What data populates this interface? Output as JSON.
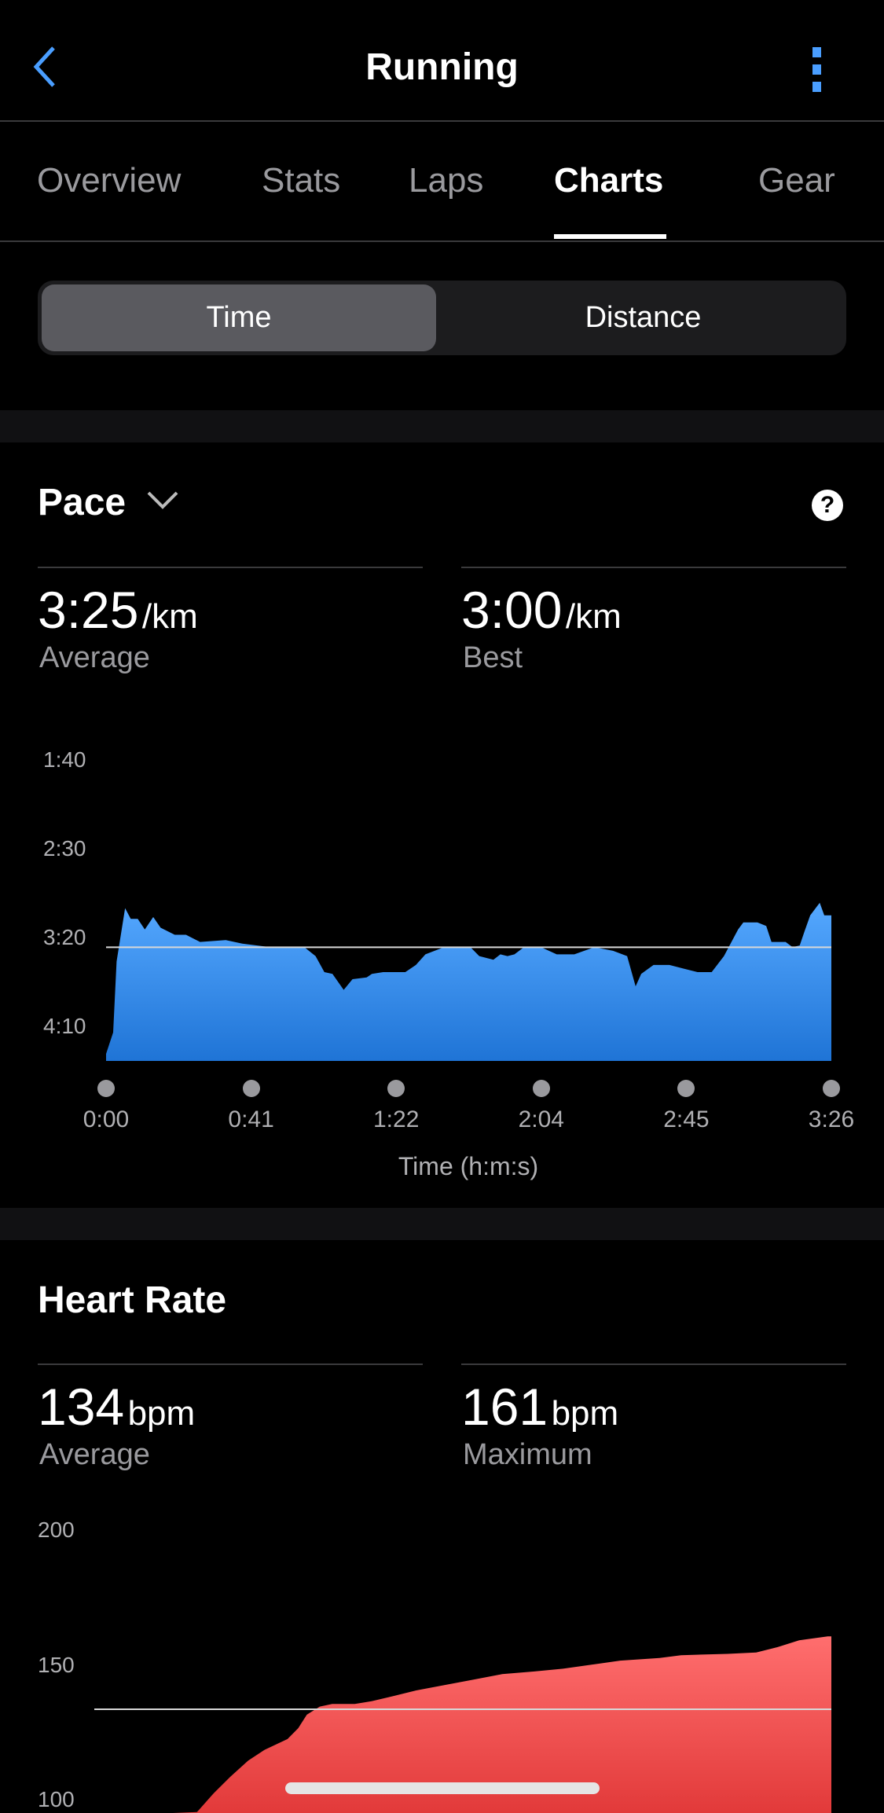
{
  "header": {
    "title": "Running",
    "back_icon": "chevron-left-icon",
    "menu_icon": "kebab-menu-icon",
    "accent": "#4a9eff"
  },
  "tabs": [
    {
      "label": "Overview"
    },
    {
      "label": "Stats"
    },
    {
      "label": "Laps"
    },
    {
      "label": "Charts",
      "active": true
    },
    {
      "label": "Gear"
    }
  ],
  "segment": {
    "options": [
      "Time",
      "Distance"
    ],
    "selected": "Time"
  },
  "pace": {
    "title": "Pace",
    "help_icon": "question-circle-icon",
    "average": {
      "value": "3:25",
      "unit": "/km",
      "label": "Average"
    },
    "best": {
      "value": "3:00",
      "unit": "/km",
      "label": "Best"
    }
  },
  "heart_rate": {
    "title": "Heart Rate",
    "average": {
      "value": "134",
      "unit": "bpm",
      "label": "Average"
    },
    "maximum": {
      "value": "161",
      "unit": "bpm",
      "label": "Maximum"
    }
  },
  "chart_data": [
    {
      "type": "area",
      "name": "pace",
      "xlabel": "Time (h:m:s)",
      "x_ticks": [
        "0:00",
        "0:41",
        "1:22",
        "2:04",
        "2:45",
        "3:26"
      ],
      "y_ticks": [
        "1:40",
        "2:30",
        "3:20",
        "4:10"
      ],
      "y_inverted": true,
      "ylim_seconds": [
        100,
        269
      ],
      "xlim_seconds": [
        0,
        206
      ],
      "average_line_seconds": 205,
      "color": "#3d95f0",
      "points": [
        [
          0,
          265
        ],
        [
          2,
          253
        ],
        [
          3,
          213
        ],
        [
          5.4,
          183
        ],
        [
          7,
          189
        ],
        [
          9,
          189
        ],
        [
          11,
          195
        ],
        [
          13.4,
          188
        ],
        [
          15.5,
          194
        ],
        [
          19.5,
          198
        ],
        [
          22.7,
          198
        ],
        [
          26.7,
          202
        ],
        [
          34,
          201
        ],
        [
          38.7,
          203
        ],
        [
          46.7,
          205
        ],
        [
          56.3,
          205
        ],
        [
          59.5,
          210
        ],
        [
          62,
          219
        ],
        [
          64.3,
          220
        ],
        [
          67.5,
          229
        ],
        [
          70,
          223
        ],
        [
          74,
          222
        ],
        [
          75.5,
          220
        ],
        [
          78.7,
          219
        ],
        [
          85,
          219
        ],
        [
          88,
          215
        ],
        [
          90.7,
          209
        ],
        [
          96,
          205
        ],
        [
          103.5,
          205
        ],
        [
          106,
          210
        ],
        [
          110,
          212
        ],
        [
          112,
          209
        ],
        [
          114,
          210
        ],
        [
          116,
          209
        ],
        [
          118.7,
          205
        ],
        [
          123.5,
          205
        ],
        [
          128,
          209
        ],
        [
          133,
          209
        ],
        [
          138.7,
          205
        ],
        [
          144,
          207
        ],
        [
          148,
          210
        ],
        [
          150.4,
          227
        ],
        [
          152,
          220
        ],
        [
          155.5,
          215
        ],
        [
          160,
          215
        ],
        [
          164,
          217
        ],
        [
          168,
          219
        ],
        [
          172,
          219
        ],
        [
          175.5,
          210
        ],
        [
          179.5,
          195
        ],
        [
          181,
          191
        ],
        [
          185,
          191
        ],
        [
          187.5,
          193
        ],
        [
          189,
          202
        ],
        [
          193,
          202
        ],
        [
          195,
          205
        ],
        [
          197,
          204
        ],
        [
          198.4,
          196
        ],
        [
          200,
          187
        ],
        [
          202.7,
          180
        ],
        [
          204,
          187
        ],
        [
          206,
          187
        ]
      ]
    },
    {
      "type": "area",
      "name": "heart-rate",
      "y_ticks": [
        "200",
        "150",
        "100"
      ],
      "ylim": [
        50,
        200
      ],
      "xlim_seconds": [
        0,
        206
      ],
      "average_line": 134,
      "color": "#f05050",
      "points": [
        [
          22,
          80
        ],
        [
          28.7,
          96
        ],
        [
          33.4,
          103
        ],
        [
          38,
          109
        ],
        [
          43,
          115
        ],
        [
          47.6,
          119
        ],
        [
          54,
          123
        ],
        [
          57,
          127
        ],
        [
          59.4,
          132
        ],
        [
          63,
          135
        ],
        [
          66.5,
          136
        ],
        [
          72.8,
          136
        ],
        [
          77.5,
          137
        ],
        [
          84,
          139
        ],
        [
          90,
          141
        ],
        [
          98,
          143
        ],
        [
          106,
          145
        ],
        [
          114,
          147
        ],
        [
          123,
          148
        ],
        [
          131,
          149
        ],
        [
          139,
          150.5
        ],
        [
          147,
          152
        ],
        [
          158,
          153
        ],
        [
          164,
          154
        ],
        [
          177,
          154.5
        ],
        [
          185,
          155
        ],
        [
          191,
          157
        ],
        [
          197,
          159.5
        ],
        [
          205,
          161
        ],
        [
          206,
          161
        ]
      ]
    }
  ]
}
